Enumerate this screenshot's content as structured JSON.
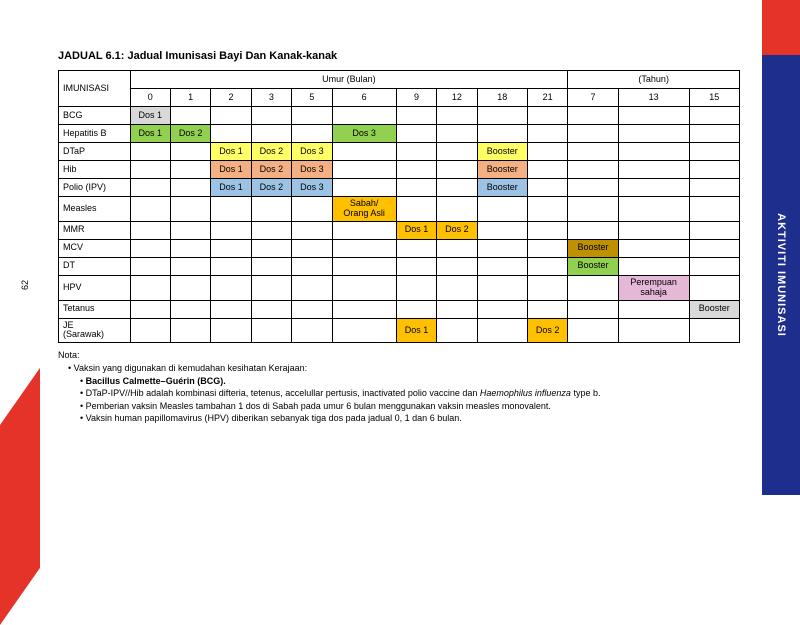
{
  "page_number": "62",
  "side_tab_label": "AKTIVITI IMUNISASI",
  "title": "JADUAL 6.1: Jadual Imunisasi Bayi Dan Kanak-kanak",
  "colors": {
    "red_accent": "#e63329",
    "blue_tab": "#1d2e8c",
    "gray": "#d9d9d9",
    "green": "#92d050",
    "yellow": "#ffff66",
    "salmon": "#f4b083",
    "blue": "#9cc3e5",
    "orange": "#ffc000",
    "olive": "#bf9000",
    "pink": "#e6b8d8"
  },
  "header": {
    "col1": "IMUNISASI",
    "group_months": "Umur (Bulan)",
    "group_years": "(Tahun)",
    "months": [
      "0",
      "1",
      "2",
      "3",
      "5",
      "6",
      "9",
      "12",
      "18",
      "21"
    ],
    "years": [
      "7",
      "13",
      "15"
    ]
  },
  "rows": [
    {
      "label": "BCG",
      "cells": [
        {
          "c": 0,
          "t": "Dos 1",
          "bg": "gray"
        }
      ]
    },
    {
      "label": "Hepatitis B",
      "cells": [
        {
          "c": 0,
          "t": "Dos 1",
          "bg": "green"
        },
        {
          "c": 1,
          "t": "Dos 2",
          "bg": "green"
        },
        {
          "c": 5,
          "t": "Dos 3",
          "bg": "green"
        }
      ]
    },
    {
      "label": "DTaP",
      "cells": [
        {
          "c": 2,
          "t": "Dos 1",
          "bg": "yellow"
        },
        {
          "c": 3,
          "t": "Dos 2",
          "bg": "yellow"
        },
        {
          "c": 4,
          "t": "Dos 3",
          "bg": "yellow"
        },
        {
          "c": 8,
          "t": "Booster",
          "bg": "yellow"
        }
      ]
    },
    {
      "label": "Hib",
      "cells": [
        {
          "c": 2,
          "t": "Dos 1",
          "bg": "salmon"
        },
        {
          "c": 3,
          "t": "Dos 2",
          "bg": "salmon"
        },
        {
          "c": 4,
          "t": "Dos 3",
          "bg": "salmon"
        },
        {
          "c": 8,
          "t": "Booster",
          "bg": "salmon"
        }
      ]
    },
    {
      "label": "Polio (IPV)",
      "cells": [
        {
          "c": 2,
          "t": "Dos 1",
          "bg": "blue"
        },
        {
          "c": 3,
          "t": "Dos 2",
          "bg": "blue"
        },
        {
          "c": 4,
          "t": "Dos 3",
          "bg": "blue"
        },
        {
          "c": 8,
          "t": "Booster",
          "bg": "blue"
        }
      ]
    },
    {
      "label": "Measles",
      "cells": [
        {
          "c": 5,
          "t": "Sabah/\nOrang Asli",
          "bg": "orange"
        }
      ]
    },
    {
      "label": "MMR",
      "cells": [
        {
          "c": 6,
          "t": "Dos 1",
          "bg": "orange"
        },
        {
          "c": 7,
          "t": "Dos 2",
          "bg": "orange"
        }
      ]
    },
    {
      "label": "MCV",
      "cells": [
        {
          "c": 10,
          "t": "Booster",
          "bg": "olive"
        }
      ]
    },
    {
      "label": "DT",
      "cells": [
        {
          "c": 10,
          "t": "Booster",
          "bg": "green"
        }
      ]
    },
    {
      "label": "HPV",
      "cells": [
        {
          "c": 11,
          "t": "Perempuan\nsahaja",
          "bg": "pink"
        }
      ]
    },
    {
      "label": "Tetanus",
      "cells": [
        {
          "c": 12,
          "t": "Booster",
          "bg": "gray"
        }
      ]
    },
    {
      "label": "JE\n(Sarawak)",
      "cells": [
        {
          "c": 6,
          "t": "Dos 1",
          "bg": "orange"
        },
        {
          "c": 9,
          "t": "Dos 2",
          "bg": "orange"
        }
      ]
    }
  ],
  "notes": {
    "title": "Nota:",
    "line1": "Vaksin yang digunakan di kemudahan kesihatan Kerajaan:",
    "bold_item": "Bacillus Calmette–Guérin (BCG).",
    "line2_pre": "DTaP-IPV//Hib adalah kombinasi difteria, tetenus, accelullar pertusis, inactivated polio vaccine dan ",
    "line2_italic": "Haemophilus influenza",
    "line2_post": " type b.",
    "line3": "Pemberian vaksin Measles tambahan 1 dos di Sabah pada umur 6 bulan menggunakan vaksin measles monovalent.",
    "line4": "Vaksin human papillomavirus (HPV) diberikan sebanyak tiga dos pada jadual 0, 1 dan 6 bulan."
  }
}
